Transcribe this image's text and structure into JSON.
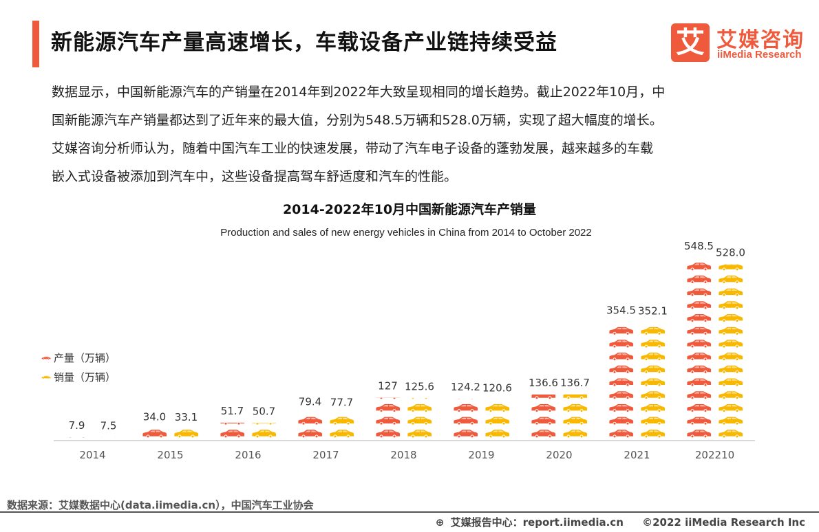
{
  "header": {
    "title": "新能源汽车产量高速增长，车载设备产业链持续受益"
  },
  "logo": {
    "mark": "艾",
    "name_cn": "艾媒咨询",
    "name_en": "iiMedia Research"
  },
  "intro": {
    "lines": [
      "数据显示，中国新能源汽车的产销量在2014年到2022年大致呈现相同的增长趋势。截止2022年10月，中",
      "国新能源汽车产销量都达到了近年来的最大值，分别为548.5万辆和528.0万辆，实现了超大幅度的增长。",
      "艾媒咨询分析师认为，随着中国汽车工业的快速发展，带动了汽车电子设备的蓬勃发展，越来越多的车载",
      "嵌入式设备被添加到汽车中，这些设备提高驾车舒适度和汽车的性能。"
    ]
  },
  "chart_data": {
    "type": "bar",
    "title": "2014-2022年10月中国新能源汽车产销量",
    "subtitle": "Production and sales of new energy vehicles in China from 2014 to October 2022",
    "categories": [
      "2014",
      "2015",
      "2016",
      "2017",
      "2018",
      "2019",
      "2020",
      "2021",
      "202210"
    ],
    "series": [
      {
        "name": "产量（万辆）",
        "values": [
          7.9,
          34.0,
          51.7,
          79.4,
          127,
          124.2,
          136.6,
          354.5,
          548.5
        ],
        "labels": [
          "7.9",
          "34.0",
          "51.7",
          "79.4",
          "127",
          "124.2",
          "136.6",
          "354.5",
          "548.5"
        ],
        "color": "#f05a3c"
      },
      {
        "name": "销量（万辆）",
        "values": [
          7.5,
          33.1,
          50.7,
          77.7,
          125.6,
          120.6,
          136.7,
          352.1,
          528.0
        ],
        "labels": [
          "7.5",
          "33.1",
          "50.7",
          "77.7",
          "125.6",
          "120.6",
          "136.7",
          "352.1",
          "528.0"
        ],
        "color": "#f9b800"
      }
    ],
    "ylim": [
      0,
      600
    ],
    "grid": false,
    "legend_position": "left",
    "bar_style": "pictograph-cars"
  },
  "footer": {
    "source": "数据来源：艾媒数据中心(data.iimedia.cn），中国汽车工业协会",
    "report_label": "艾媒报告中心：report.iimedia.cn",
    "copyright": "©2022  iiMedia Research  Inc"
  },
  "colors": {
    "accent": "#f05a3c",
    "production": "#f05a3c",
    "sales": "#f9b800",
    "axis": "#cccccc"
  }
}
